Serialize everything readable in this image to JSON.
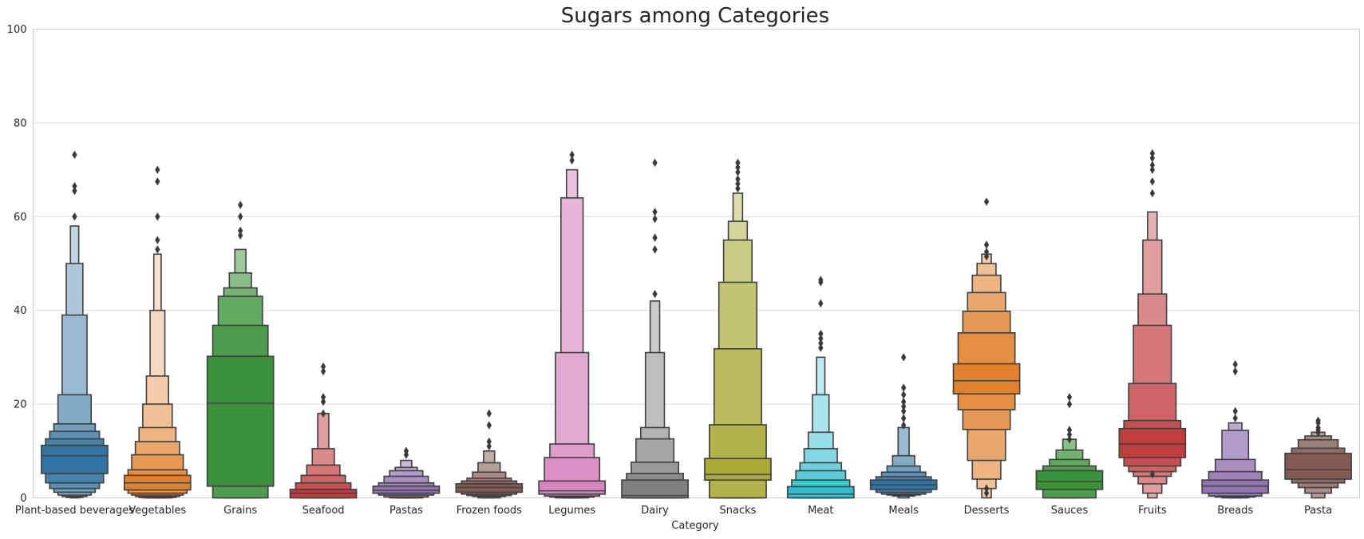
{
  "chart_data": {
    "type": "boxen",
    "title": "Sugars among Categories",
    "xlabel": "Category",
    "ylabel": "",
    "ylim": [
      0,
      100
    ],
    "yticks": [
      0,
      20,
      40,
      60,
      80,
      100
    ],
    "grid": "horizontal",
    "categories": [
      "Plant-based beverages",
      "Vegetables",
      "Grains",
      "Seafood",
      "Pastas",
      "Frozen foods",
      "Legumes",
      "Dairy",
      "Snacks",
      "Meat",
      "Meals",
      "Desserts",
      "Sauces",
      "Fruits",
      "Breads",
      "Pasta"
    ],
    "colors": [
      "#3274a1",
      "#e1812c",
      "#3a923a",
      "#c03d3e",
      "#9372b2",
      "#845b53",
      "#d684bd",
      "#7f7f7f",
      "#a9aa35",
      "#2ebdcf",
      "#3274a1",
      "#e1812c",
      "#3a923a",
      "#c03d3e",
      "#9372b2",
      "#845b53"
    ],
    "series": [
      {
        "category": "Plant-based beverages",
        "median": 9,
        "levels": [
          [
            5.2,
            11.2
          ],
          [
            3.2,
            12.6
          ],
          [
            2.0,
            14.2
          ],
          [
            1.2,
            15.8
          ],
          [
            0.6,
            22.0
          ],
          [
            0.3,
            39.0
          ],
          [
            0.1,
            50.0
          ],
          [
            0.0,
            58.0
          ]
        ],
        "outliers": [
          73.2,
          66.5,
          65.5,
          60.0
        ]
      },
      {
        "category": "Vegetables",
        "median": 3.2,
        "levels": [
          [
            1.7,
            4.8
          ],
          [
            1.0,
            6.0
          ],
          [
            0.6,
            9.2
          ],
          [
            0.3,
            12.0
          ],
          [
            0.1,
            15.0
          ],
          [
            0.0,
            20.0
          ],
          [
            0.0,
            26.0
          ],
          [
            0.0,
            40.0
          ],
          [
            0.0,
            52.0
          ]
        ],
        "outliers": [
          70.0,
          67.5,
          60.0,
          55.0,
          53.0
        ]
      },
      {
        "category": "Grains",
        "median": 20.2,
        "levels": [
          [
            2.5,
            30.2
          ],
          [
            0.0,
            36.8
          ],
          [
            0.0,
            43.0
          ],
          [
            0.0,
            44.8
          ],
          [
            0.0,
            48.0
          ],
          [
            0.0,
            53.0
          ]
        ],
        "outliers": [
          62.5,
          60.0,
          57.0,
          56.0
        ]
      },
      {
        "category": "Seafood",
        "median": 1.0,
        "levels": [
          [
            0.0,
            1.8
          ],
          [
            0.0,
            3.2
          ],
          [
            0.0,
            4.8
          ],
          [
            0.0,
            7.0
          ],
          [
            0.0,
            10.5
          ],
          [
            0.0,
            18.0
          ]
        ],
        "outliers": [
          28.0,
          27.0,
          21.5,
          20.5,
          18.0
        ]
      },
      {
        "category": "Pastas",
        "median": 1.6,
        "levels": [
          [
            1.0,
            2.5
          ],
          [
            0.6,
            3.2
          ],
          [
            0.2,
            4.6
          ],
          [
            0.0,
            5.8
          ],
          [
            0.0,
            6.5
          ],
          [
            0.0,
            8.0
          ]
        ],
        "outliers": [
          10.0,
          9.2
        ]
      },
      {
        "category": "Frozen foods",
        "median": 2.2,
        "levels": [
          [
            1.2,
            3.0
          ],
          [
            0.8,
            3.6
          ],
          [
            0.5,
            4.2
          ],
          [
            0.3,
            5.5
          ],
          [
            0.0,
            7.5
          ],
          [
            0.0,
            10.0
          ]
        ],
        "outliers": [
          18.0,
          15.5,
          12.0,
          11.0
        ]
      },
      {
        "category": "Legumes",
        "median": 1.5,
        "levels": [
          [
            0.8,
            3.6
          ],
          [
            0.4,
            8.6
          ],
          [
            0.2,
            11.5
          ],
          [
            0.0,
            31.0
          ],
          [
            0.0,
            64.0
          ],
          [
            0.0,
            70.0
          ]
        ],
        "outliers": [
          73.2,
          72.0
        ]
      },
      {
        "category": "Dairy",
        "median": 0.5,
        "levels": [
          [
            0.0,
            3.8
          ],
          [
            0.0,
            5.2
          ],
          [
            0.0,
            7.6
          ],
          [
            0.0,
            12.6
          ],
          [
            0.0,
            15.0
          ],
          [
            0.0,
            31.0
          ],
          [
            0.0,
            42.0
          ]
        ],
        "outliers": [
          71.5,
          61.0,
          59.5,
          55.5,
          53.0,
          43.5
        ]
      },
      {
        "category": "Snacks",
        "median": 5.0,
        "levels": [
          [
            3.8,
            8.4
          ],
          [
            0.0,
            15.6
          ],
          [
            0.0,
            31.8
          ],
          [
            0.0,
            46.0
          ],
          [
            0.0,
            55.0
          ],
          [
            0.0,
            59.0
          ],
          [
            0.0,
            65.0
          ]
        ],
        "outliers": [
          71.5,
          70.5,
          69.5,
          68.0,
          67.0,
          66.0
        ]
      },
      {
        "category": "Meat",
        "median": 0.8,
        "levels": [
          [
            0.0,
            2.4
          ],
          [
            0.0,
            3.8
          ],
          [
            0.0,
            5.8
          ],
          [
            0.0,
            7.5
          ],
          [
            0.0,
            10.5
          ],
          [
            0.0,
            14.0
          ],
          [
            0.0,
            22.0
          ],
          [
            0.0,
            30.0
          ]
        ],
        "outliers": [
          46.5,
          46.0,
          41.5,
          35.0,
          34.0,
          33.0,
          32.0
        ]
      },
      {
        "category": "Meals",
        "median": 2.8,
        "levels": [
          [
            1.8,
            3.8
          ],
          [
            1.2,
            4.5
          ],
          [
            0.8,
            5.5
          ],
          [
            0.6,
            6.8
          ],
          [
            0.4,
            9.0
          ],
          [
            0.0,
            15.0
          ]
        ],
        "outliers": [
          30.0,
          23.5,
          22.0,
          20.5,
          19.5,
          18.5,
          17.0,
          15.5
        ]
      },
      {
        "category": "Desserts",
        "median": 25.0,
        "levels": [
          [
            22.2,
            28.6
          ],
          [
            18.8,
            35.2
          ],
          [
            14.6,
            39.8
          ],
          [
            8.0,
            43.8
          ],
          [
            4.0,
            47.5
          ],
          [
            2.0,
            50.0
          ],
          [
            0.0,
            52.0
          ]
        ],
        "outliers": [
          63.2,
          54.0,
          52.5,
          51.5,
          2.0,
          1.0
        ]
      },
      {
        "category": "Sauces",
        "median": 3.5,
        "levels": [
          [
            1.8,
            5.8
          ],
          [
            0.0,
            6.8
          ],
          [
            0.0,
            8.2
          ],
          [
            0.0,
            10.2
          ],
          [
            0.0,
            12.5
          ]
        ],
        "outliers": [
          21.5,
          20.0,
          14.5,
          13.5,
          12.5
        ]
      },
      {
        "category": "Fruits",
        "median": 11.5,
        "levels": [
          [
            8.6,
            14.8
          ],
          [
            6.8,
            16.5
          ],
          [
            5.6,
            24.4
          ],
          [
            4.6,
            36.8
          ],
          [
            3.0,
            43.5
          ],
          [
            1.0,
            55.0
          ],
          [
            0.0,
            61.0
          ]
        ],
        "outliers": [
          73.5,
          72.5,
          71.0,
          70.0,
          67.5,
          65.0,
          5.0
        ]
      },
      {
        "category": "Breads",
        "median": 2.5,
        "levels": [
          [
            1.0,
            3.8
          ],
          [
            0.4,
            5.6
          ],
          [
            0.2,
            8.2
          ],
          [
            0.0,
            14.4
          ],
          [
            0.0,
            16.0
          ]
        ],
        "outliers": [
          28.5,
          27.0,
          18.5,
          17.0
        ]
      },
      {
        "category": "Pasta",
        "median": 6.0,
        "levels": [
          [
            4.0,
            9.5
          ],
          [
            3.2,
            10.6
          ],
          [
            2.2,
            12.4
          ],
          [
            1.0,
            13.2
          ],
          [
            0.0,
            14.0
          ]
        ],
        "outliers": [
          16.5,
          16.0,
          15.0,
          14.5,
          14.0
        ]
      }
    ]
  }
}
